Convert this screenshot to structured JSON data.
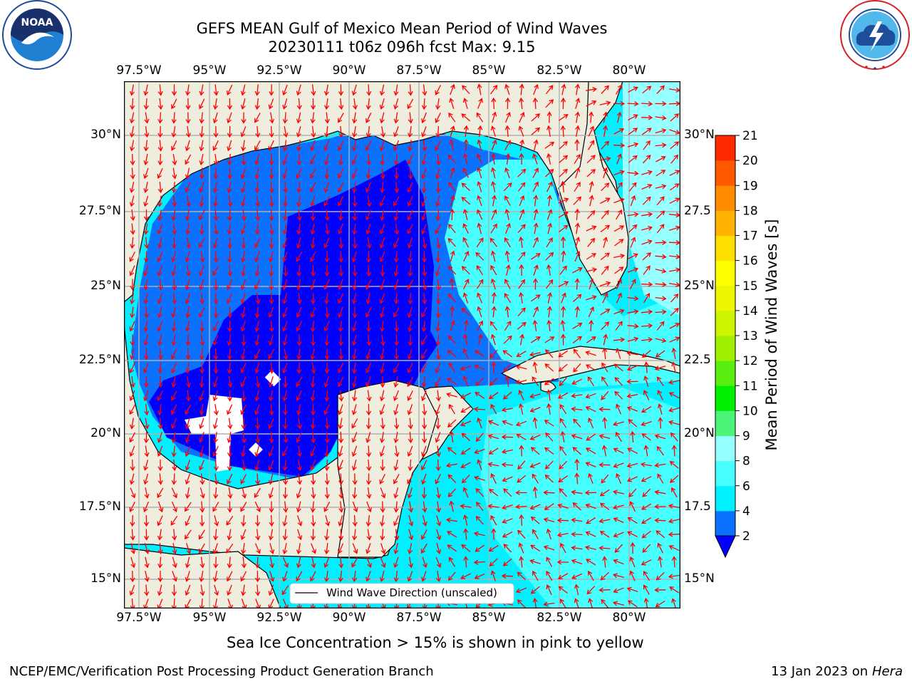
{
  "header": {
    "title_line1": "GEFS MEAN Gulf of Mexico Mean Period of Wind Waves",
    "title_line2": "20230111 t06z 096h fcst   Max: 9.15"
  },
  "logos": {
    "left_seal": "NOAA",
    "left_ring_text": "NATIONAL OCEANIC AND ATMOSPHERIC ADMINISTRATION · U.S. DEPARTMENT OF COMMERCE",
    "right_ring_text": "NATIONAL WEATHER SERVICE"
  },
  "map": {
    "lon_labels": [
      "97.5°W",
      "95°W",
      "92.5°W",
      "90°W",
      "87.5°W",
      "85°W",
      "82.5°W",
      "80°W"
    ],
    "lat_labels_left": [
      "30°N",
      "27.5°N",
      "25°N",
      "22.5°N",
      "20°N",
      "17.5°N",
      "15°N"
    ],
    "lat_labels_right": [
      "30°N",
      "27.5",
      "25°N",
      "22.5",
      "20°N",
      "17.5",
      "15°N"
    ],
    "legend_label": "Wind Wave Direction (unscaled)",
    "land_color": "#efedde",
    "arrow_color": "#ff0000",
    "grid_color": "#b0b0b0"
  },
  "colorbar": {
    "label": "Mean Period of Wind Waves [s]",
    "ticks": [
      "2",
      "4",
      "6",
      "8",
      "9",
      "10",
      "11",
      "12",
      "13",
      "14",
      "15",
      "16",
      "17",
      "18",
      "19",
      "20",
      "21"
    ],
    "colors": [
      "#0a72ff",
      "#00f0ff",
      "#48ffff",
      "#96ffff",
      "#4cf57a",
      "#00ef00",
      "#5aee10",
      "#9ff000",
      "#cdf500",
      "#eef500",
      "#ffff00",
      "#ffdf00",
      "#ffb300",
      "#ff8c00",
      "#ff5900",
      "#ff2a00"
    ],
    "under_color": "#0000ff"
  },
  "notes": {
    "sea_ice": "Sea Ice Concentration > 15% is shown in pink to yellow"
  },
  "footer": {
    "left": "NCEP/EMC/Verification Post Processing Product Generation Branch",
    "date": "13 Jan 2023 on ",
    "host": "Hera"
  }
}
